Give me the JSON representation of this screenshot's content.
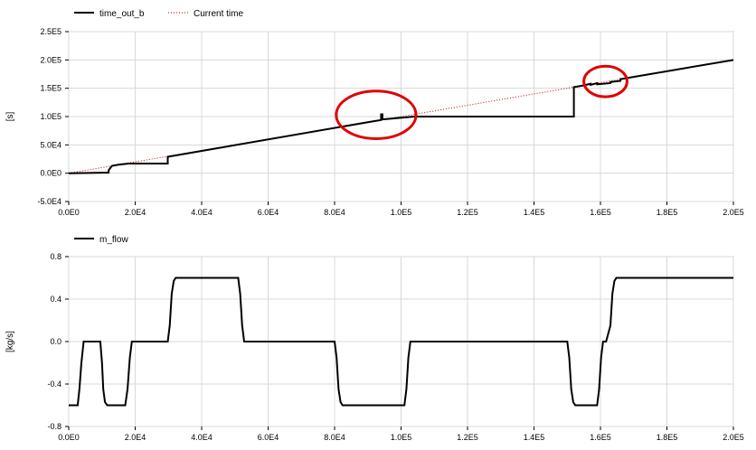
{
  "chart_data": [
    {
      "type": "line",
      "ylabel": "[s]",
      "xlim": [
        0,
        200000
      ],
      "ylim": [
        -50000,
        250000
      ],
      "x_ticks": [
        0,
        20000,
        40000,
        60000,
        80000,
        100000,
        120000,
        140000,
        160000,
        180000,
        200000
      ],
      "x_tick_labels": [
        "0.0E0",
        "2.0E4",
        "4.0E4",
        "6.0E4",
        "8.0E4",
        "1.0E5",
        "1.2E5",
        "1.4E5",
        "1.6E5",
        "1.8E5",
        "2.0E5"
      ],
      "y_ticks": [
        -50000,
        0,
        50000,
        100000,
        150000,
        200000,
        250000
      ],
      "y_tick_labels": [
        "-5.0E4",
        "0.0E0",
        "5.0E4",
        "1.0E5",
        "1.5E5",
        "2.0E5",
        "2.5E5"
      ],
      "grid": true,
      "legend_position": "top-left",
      "series": [
        {
          "name": "time_out_b",
          "color": "#000000",
          "style": "solid",
          "x": [
            0,
            12000,
            12000,
            13000,
            15000,
            18000,
            29800,
            29800,
            91000,
            94000,
            94000,
            94400,
            94400,
            104000,
            152000,
            152000,
            155000,
            157000,
            157000,
            159000,
            159000,
            163000,
            163000,
            166000,
            166000,
            200000
          ],
          "y": [
            0,
            1000,
            5000,
            13000,
            15000,
            17000,
            17000,
            29000,
            91000,
            94000,
            104000,
            104000,
            95000,
            100000,
            100000,
            152000,
            155000,
            158000,
            156000,
            159000,
            157000,
            159000,
            161000,
            163000,
            166000,
            200000
          ]
        },
        {
          "name": "Current time",
          "color": "#c00000",
          "style": "dotted",
          "x": [
            0,
            200000
          ],
          "y": [
            0,
            200000
          ]
        }
      ],
      "annotations": [
        {
          "type": "circle",
          "color": "#e00000",
          "cx": 92500,
          "cy": 103000,
          "rx": 12000,
          "ry": 42000
        },
        {
          "type": "circle",
          "color": "#e00000",
          "cx": 161500,
          "cy": 162000,
          "rx": 6500,
          "ry": 27000
        }
      ]
    },
    {
      "type": "line",
      "ylabel": "[kg/s]",
      "xlim": [
        0,
        200000
      ],
      "ylim": [
        -0.8,
        0.8
      ],
      "x_ticks": [
        0,
        20000,
        40000,
        60000,
        80000,
        100000,
        120000,
        140000,
        160000,
        180000,
        200000
      ],
      "x_tick_labels": [
        "0.0E0",
        "2.0E4",
        "4.0E4",
        "6.0E4",
        "8.0E4",
        "1.0E5",
        "1.2E5",
        "1.4E5",
        "1.6E5",
        "1.8E5",
        "2.0E5"
      ],
      "y_ticks": [
        -0.8,
        -0.4,
        0,
        0.4,
        0.8
      ],
      "y_tick_labels": [
        "-0.8",
        "-0.4",
        "0.0",
        "0.4",
        "0.8"
      ],
      "grid": true,
      "legend_position": "top-left",
      "series": [
        {
          "name": "m_flow",
          "color": "#000000",
          "style": "solid",
          "x": [
            0,
            2700,
            3200,
            3800,
            4500,
            5200,
            5500,
            9500,
            10000,
            10400,
            10900,
            11600,
            12200,
            17000,
            17700,
            18400,
            19000,
            29800,
            30400,
            31000,
            31600,
            32200,
            51000,
            51600,
            52200,
            52800,
            80000,
            80600,
            81200,
            81800,
            82400,
            101000,
            101600,
            102200,
            102800,
            150000,
            150600,
            151200,
            151800,
            152400,
            159000,
            159600,
            160200,
            160800,
            161400,
            161700,
            163000,
            163600,
            164200,
            164800,
            165400,
            200000
          ],
          "y": [
            -0.6,
            -0.6,
            -0.45,
            -0.2,
            0,
            0,
            0,
            0,
            -0.2,
            -0.45,
            -0.57,
            -0.6,
            -0.6,
            -0.6,
            -0.45,
            -0.15,
            0,
            0,
            0.15,
            0.45,
            0.57,
            0.6,
            0.6,
            0.45,
            0.15,
            0,
            0,
            -0.15,
            -0.45,
            -0.57,
            -0.6,
            -0.6,
            -0.45,
            -0.15,
            0,
            0,
            -0.15,
            -0.45,
            -0.57,
            -0.6,
            -0.6,
            -0.45,
            -0.15,
            0,
            0,
            0,
            0.15,
            0.45,
            0.57,
            0.6,
            0.6,
            0.6
          ]
        }
      ]
    }
  ]
}
